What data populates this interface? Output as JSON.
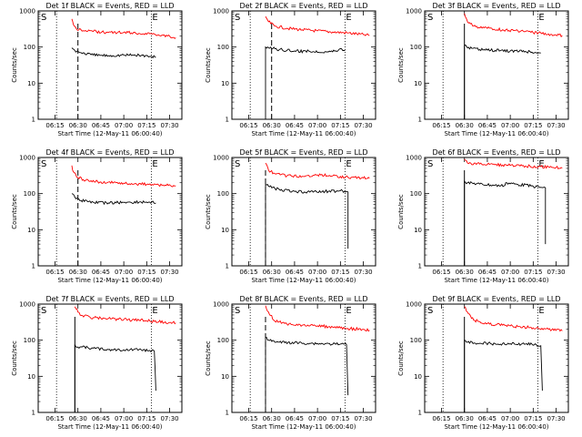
{
  "figure": {
    "start_time": "12-May-11 06:00:40",
    "xlabel_prefix": "Start Time (",
    "xlabel_suffix": ")",
    "ylabel": "Counts/sec",
    "x_tick_labels": [
      "06:15",
      "06:30",
      "06:45",
      "07:00",
      "07:15",
      "07:30"
    ],
    "y_tick_labels": [
      "1",
      "10",
      "100",
      "1000"
    ],
    "flag_start": "S",
    "flag_end": "E"
  },
  "colors": {
    "events": "#000000",
    "lld": "#ff0000"
  },
  "chart_data": [
    {
      "type": "line",
      "title": "Det 1f BLACK = Events, RED = LLD",
      "xlabel": "Start Time (12-May-11 06:00:40)",
      "ylabel": "Counts/sec",
      "y_scale": "log",
      "ylim": [
        1,
        1000
      ],
      "xlim": [
        "06:04",
        "07:38"
      ],
      "start_marker": "06:30",
      "marker_style": "dashed",
      "end_marker": "07:18",
      "dotted_lines": [
        "06:16",
        "07:18"
      ],
      "series": [
        {
          "name": "LLD",
          "color": "#ff0000",
          "points": [
            [
              "06:26",
              600
            ],
            [
              "06:27",
              420
            ],
            [
              "06:29",
              320
            ],
            [
              "06:32",
              300
            ],
            [
              "06:40",
              270
            ],
            [
              "06:50",
              255
            ],
            [
              "07:00",
              255
            ],
            [
              "07:10",
              240
            ],
            [
              "07:20",
              230
            ],
            [
              "07:30",
              200
            ],
            [
              "07:34",
              180
            ]
          ]
        },
        {
          "name": "Events",
          "color": "#000000",
          "points": [
            [
              "06:26",
              95
            ],
            [
              "06:28",
              80
            ],
            [
              "06:32",
              70
            ],
            [
              "06:40",
              60
            ],
            [
              "06:50",
              58
            ],
            [
              "07:00",
              60
            ],
            [
              "07:10",
              60
            ],
            [
              "07:17",
              55
            ],
            [
              "07:21",
              52
            ]
          ]
        }
      ]
    },
    {
      "type": "line",
      "title": "Det 2f BLACK = Events, RED = LLD",
      "xlabel": "Start Time (12-May-11 06:00:40)",
      "ylabel": "Counts/sec",
      "y_scale": "log",
      "ylim": [
        1,
        1000
      ],
      "xlim": [
        "06:04",
        "07:38"
      ],
      "start_marker": "06:30",
      "marker_style": "dashed",
      "end_marker": "07:18",
      "dotted_lines": [
        "06:16",
        "07:18"
      ],
      "series": [
        {
          "name": "LLD",
          "color": "#ff0000",
          "points": [
            [
              "06:26",
              700
            ],
            [
              "06:28",
              500
            ],
            [
              "06:32",
              380
            ],
            [
              "06:40",
              330
            ],
            [
              "06:50",
              300
            ],
            [
              "07:00",
              280
            ],
            [
              "07:10",
              260
            ],
            [
              "07:20",
              245
            ],
            [
              "07:30",
              220
            ],
            [
              "07:34",
              210
            ]
          ]
        },
        {
          "name": "Events",
          "color": "#000000",
          "points": [
            [
              "06:26",
              1
            ],
            [
              "06:26",
              100
            ],
            [
              "06:28",
              95
            ],
            [
              "06:35",
              85
            ],
            [
              "06:45",
              78
            ],
            [
              "06:55",
              76
            ],
            [
              "07:05",
              75
            ],
            [
              "07:12",
              78
            ],
            [
              "07:15",
              90
            ],
            [
              "07:18",
              80
            ]
          ]
        }
      ]
    },
    {
      "type": "line",
      "title": "Det 3f BLACK = Events, RED = LLD",
      "xlabel": "Start Time (12-May-11 06:00:40)",
      "ylabel": "Counts/sec",
      "y_scale": "log",
      "ylim": [
        1,
        1000
      ],
      "xlim": [
        "06:04",
        "07:38"
      ],
      "start_marker": "06:30",
      "marker_style": "solid",
      "end_marker": "07:18",
      "dotted_lines": [
        "06:16",
        "07:18"
      ],
      "series": [
        {
          "name": "LLD",
          "color": "#ff0000",
          "points": [
            [
              "06:30",
              850
            ],
            [
              "06:32",
              500
            ],
            [
              "06:36",
              380
            ],
            [
              "06:45",
              330
            ],
            [
              "06:55",
              300
            ],
            [
              "07:05",
              280
            ],
            [
              "07:15",
              250
            ],
            [
              "07:25",
              230
            ],
            [
              "07:34",
              210
            ]
          ]
        },
        {
          "name": "Events",
          "color": "#000000",
          "points": [
            [
              "06:30",
              1
            ],
            [
              "06:30",
              110
            ],
            [
              "06:32",
              95
            ],
            [
              "06:40",
              85
            ],
            [
              "06:50",
              80
            ],
            [
              "07:00",
              78
            ],
            [
              "07:10",
              76
            ],
            [
              "07:17",
              70
            ],
            [
              "07:20",
              68
            ]
          ]
        }
      ]
    },
    {
      "type": "line",
      "title": "Det 4f BLACK = Events, RED = LLD",
      "xlabel": "Start Time (12-May-11 06:00:40)",
      "ylabel": "Counts/sec",
      "y_scale": "log",
      "ylim": [
        1,
        1000
      ],
      "xlim": [
        "06:04",
        "07:38"
      ],
      "start_marker": "06:30",
      "marker_style": "dashed",
      "end_marker": "07:18",
      "dotted_lines": [
        "06:16",
        "07:18"
      ],
      "series": [
        {
          "name": "LLD",
          "color": "#ff0000",
          "points": [
            [
              "06:26",
              600
            ],
            [
              "06:27",
              400
            ],
            [
              "06:30",
              280
            ],
            [
              "06:35",
              230
            ],
            [
              "06:45",
              210
            ],
            [
              "06:55",
              200
            ],
            [
              "07:05",
              190
            ],
            [
              "07:15",
              180
            ],
            [
              "07:25",
              170
            ],
            [
              "07:34",
              165
            ]
          ]
        },
        {
          "name": "Events",
          "color": "#000000",
          "points": [
            [
              "06:26",
              100
            ],
            [
              "06:28",
              80
            ],
            [
              "06:32",
              65
            ],
            [
              "06:40",
              58
            ],
            [
              "06:50",
              55
            ],
            [
              "07:00",
              57
            ],
            [
              "07:10",
              58
            ],
            [
              "07:17",
              58
            ],
            [
              "07:21",
              55
            ]
          ]
        }
      ]
    },
    {
      "type": "line",
      "title": "Det 5f BLACK = Events, RED = LLD",
      "xlabel": "Start Time (12-May-11 06:00:40)",
      "ylabel": "Counts/sec",
      "y_scale": "log",
      "ylim": [
        1,
        1000
      ],
      "xlim": [
        "06:04",
        "07:38"
      ],
      "start_marker": "06:26",
      "marker_style": "dashed",
      "end_marker": "07:18",
      "dotted_lines": [
        "06:16",
        "07:18"
      ],
      "series": [
        {
          "name": "LLD",
          "color": "#ff0000",
          "points": [
            [
              "06:26",
              700
            ],
            [
              "06:28",
              450
            ],
            [
              "06:32",
              360
            ],
            [
              "06:40",
              310
            ],
            [
              "06:50",
              300
            ],
            [
              "07:00",
              330
            ],
            [
              "07:10",
              310
            ],
            [
              "07:20",
              280
            ],
            [
              "07:30",
              270
            ],
            [
              "07:34",
              265
            ]
          ]
        },
        {
          "name": "Events",
          "color": "#000000",
          "points": [
            [
              "06:26",
              1
            ],
            [
              "06:26",
              180
            ],
            [
              "06:28",
              160
            ],
            [
              "06:35",
              130
            ],
            [
              "06:45",
              115
            ],
            [
              "06:55",
              110
            ],
            [
              "07:05",
              115
            ],
            [
              "07:15",
              120
            ],
            [
              "07:19",
              115
            ],
            [
              "07:20",
              110
            ],
            [
              "07:20",
              3
            ]
          ]
        }
      ]
    },
    {
      "type": "line",
      "title": "Det 6f BLACK = Events, RED = LLD",
      "xlabel": "Start Time (12-May-11 06:00:40)",
      "ylabel": "Counts/sec",
      "y_scale": "log",
      "ylim": [
        1,
        1000
      ],
      "xlim": [
        "06:04",
        "07:38"
      ],
      "start_marker": "06:30",
      "marker_style": "solid",
      "end_marker": "07:18",
      "dotted_lines": [
        "06:16",
        "07:18"
      ],
      "series": [
        {
          "name": "LLD",
          "color": "#ff0000",
          "points": [
            [
              "06:30",
              900
            ],
            [
              "06:32",
              700
            ],
            [
              "06:40",
              660
            ],
            [
              "06:50",
              630
            ],
            [
              "07:00",
              600
            ],
            [
              "07:10",
              580
            ],
            [
              "07:20",
              560
            ],
            [
              "07:30",
              530
            ],
            [
              "07:34",
              510
            ]
          ]
        },
        {
          "name": "Events",
          "color": "#000000",
          "points": [
            [
              "06:30",
              1
            ],
            [
              "06:30",
              220
            ],
            [
              "06:32",
              200
            ],
            [
              "06:40",
              185
            ],
            [
              "06:50",
              170
            ],
            [
              "06:56",
              165
            ],
            [
              "06:57",
              200
            ],
            [
              "07:05",
              180
            ],
            [
              "07:15",
              160
            ],
            [
              "07:20",
              150
            ],
            [
              "07:23",
              145
            ],
            [
              "07:23",
              4
            ]
          ]
        }
      ]
    },
    {
      "type": "line",
      "title": "Det 7f BLACK = Events, RED = LLD",
      "xlabel": "Start Time (12-May-11 06:00:40)",
      "ylabel": "Counts/sec",
      "y_scale": "log",
      "ylim": [
        1,
        1000
      ],
      "xlim": [
        "06:04",
        "07:38"
      ],
      "start_marker": "06:28",
      "marker_style": "solid",
      "end_marker": "07:18",
      "dotted_lines": [
        "06:16",
        "07:18"
      ],
      "series": [
        {
          "name": "LLD",
          "color": "#ff0000",
          "points": [
            [
              "06:28",
              850
            ],
            [
              "06:30",
              600
            ],
            [
              "06:33",
              480
            ],
            [
              "06:40",
              420
            ],
            [
              "06:50",
              400
            ],
            [
              "07:00",
              370
            ],
            [
              "07:10",
              360
            ],
            [
              "07:20",
              330
            ],
            [
              "07:30",
              310
            ],
            [
              "07:34",
              300
            ]
          ]
        },
        {
          "name": "Events",
          "color": "#000000",
          "points": [
            [
              "06:28",
              1
            ],
            [
              "06:28",
              75
            ],
            [
              "06:30",
              65
            ],
            [
              "06:40",
              60
            ],
            [
              "06:50",
              55
            ],
            [
              "07:00",
              54
            ],
            [
              "07:10",
              55
            ],
            [
              "07:17",
              52
            ],
            [
              "07:20",
              50
            ],
            [
              "07:21",
              4
            ]
          ]
        }
      ]
    },
    {
      "type": "line",
      "title": "Det 8f BLACK = Events, RED = LLD",
      "xlabel": "Start Time (12-May-11 06:00:40)",
      "ylabel": "Counts/sec",
      "y_scale": "log",
      "ylim": [
        1,
        1000
      ],
      "xlim": [
        "06:04",
        "07:38"
      ],
      "start_marker": "06:26",
      "marker_style": "dashed",
      "end_marker": "07:18",
      "dotted_lines": [
        "06:16",
        "07:18"
      ],
      "series": [
        {
          "name": "LLD",
          "color": "#ff0000",
          "points": [
            [
              "06:26",
              900
            ],
            [
              "06:28",
              600
            ],
            [
              "06:32",
              340
            ],
            [
              "06:40",
              280
            ],
            [
              "06:50",
              260
            ],
            [
              "07:00",
              250
            ],
            [
              "07:10",
              230
            ],
            [
              "07:20",
              210
            ],
            [
              "07:30",
              200
            ],
            [
              "07:34",
              190
            ]
          ]
        },
        {
          "name": "Events",
          "color": "#000000",
          "points": [
            [
              "06:26",
              1
            ],
            [
              "06:26",
              120
            ],
            [
              "06:28",
              100
            ],
            [
              "06:35",
              88
            ],
            [
              "06:45",
              85
            ],
            [
              "06:55",
              82
            ],
            [
              "07:05",
              80
            ],
            [
              "07:15",
              78
            ],
            [
              "07:19",
              75
            ],
            [
              "07:20",
              3
            ]
          ]
        }
      ]
    },
    {
      "type": "line",
      "title": "Det 9f BLACK = Events, RED = LLD",
      "xlabel": "Start Time (12-May-11 06:00:40)",
      "ylabel": "Counts/sec",
      "y_scale": "log",
      "ylim": [
        1,
        1000
      ],
      "xlim": [
        "06:04",
        "07:38"
      ],
      "start_marker": "06:30",
      "marker_style": "solid",
      "end_marker": "07:18",
      "dotted_lines": [
        "06:16",
        "07:18"
      ],
      "series": [
        {
          "name": "LLD",
          "color": "#ff0000",
          "points": [
            [
              "06:30",
              850
            ],
            [
              "06:32",
              600
            ],
            [
              "06:36",
              360
            ],
            [
              "06:45",
              290
            ],
            [
              "06:55",
              260
            ],
            [
              "07:05",
              240
            ],
            [
              "07:15",
              220
            ],
            [
              "07:25",
              200
            ],
            [
              "07:34",
              180
            ]
          ]
        },
        {
          "name": "Events",
          "color": "#000000",
          "points": [
            [
              "06:30",
              1
            ],
            [
              "06:30",
              100
            ],
            [
              "06:32",
              88
            ],
            [
              "06:40",
              82
            ],
            [
              "06:50",
              80
            ],
            [
              "07:00",
              80
            ],
            [
              "07:10",
              78
            ],
            [
              "07:17",
              75
            ],
            [
              "07:20",
              70
            ],
            [
              "07:21",
              4
            ]
          ]
        }
      ]
    }
  ]
}
